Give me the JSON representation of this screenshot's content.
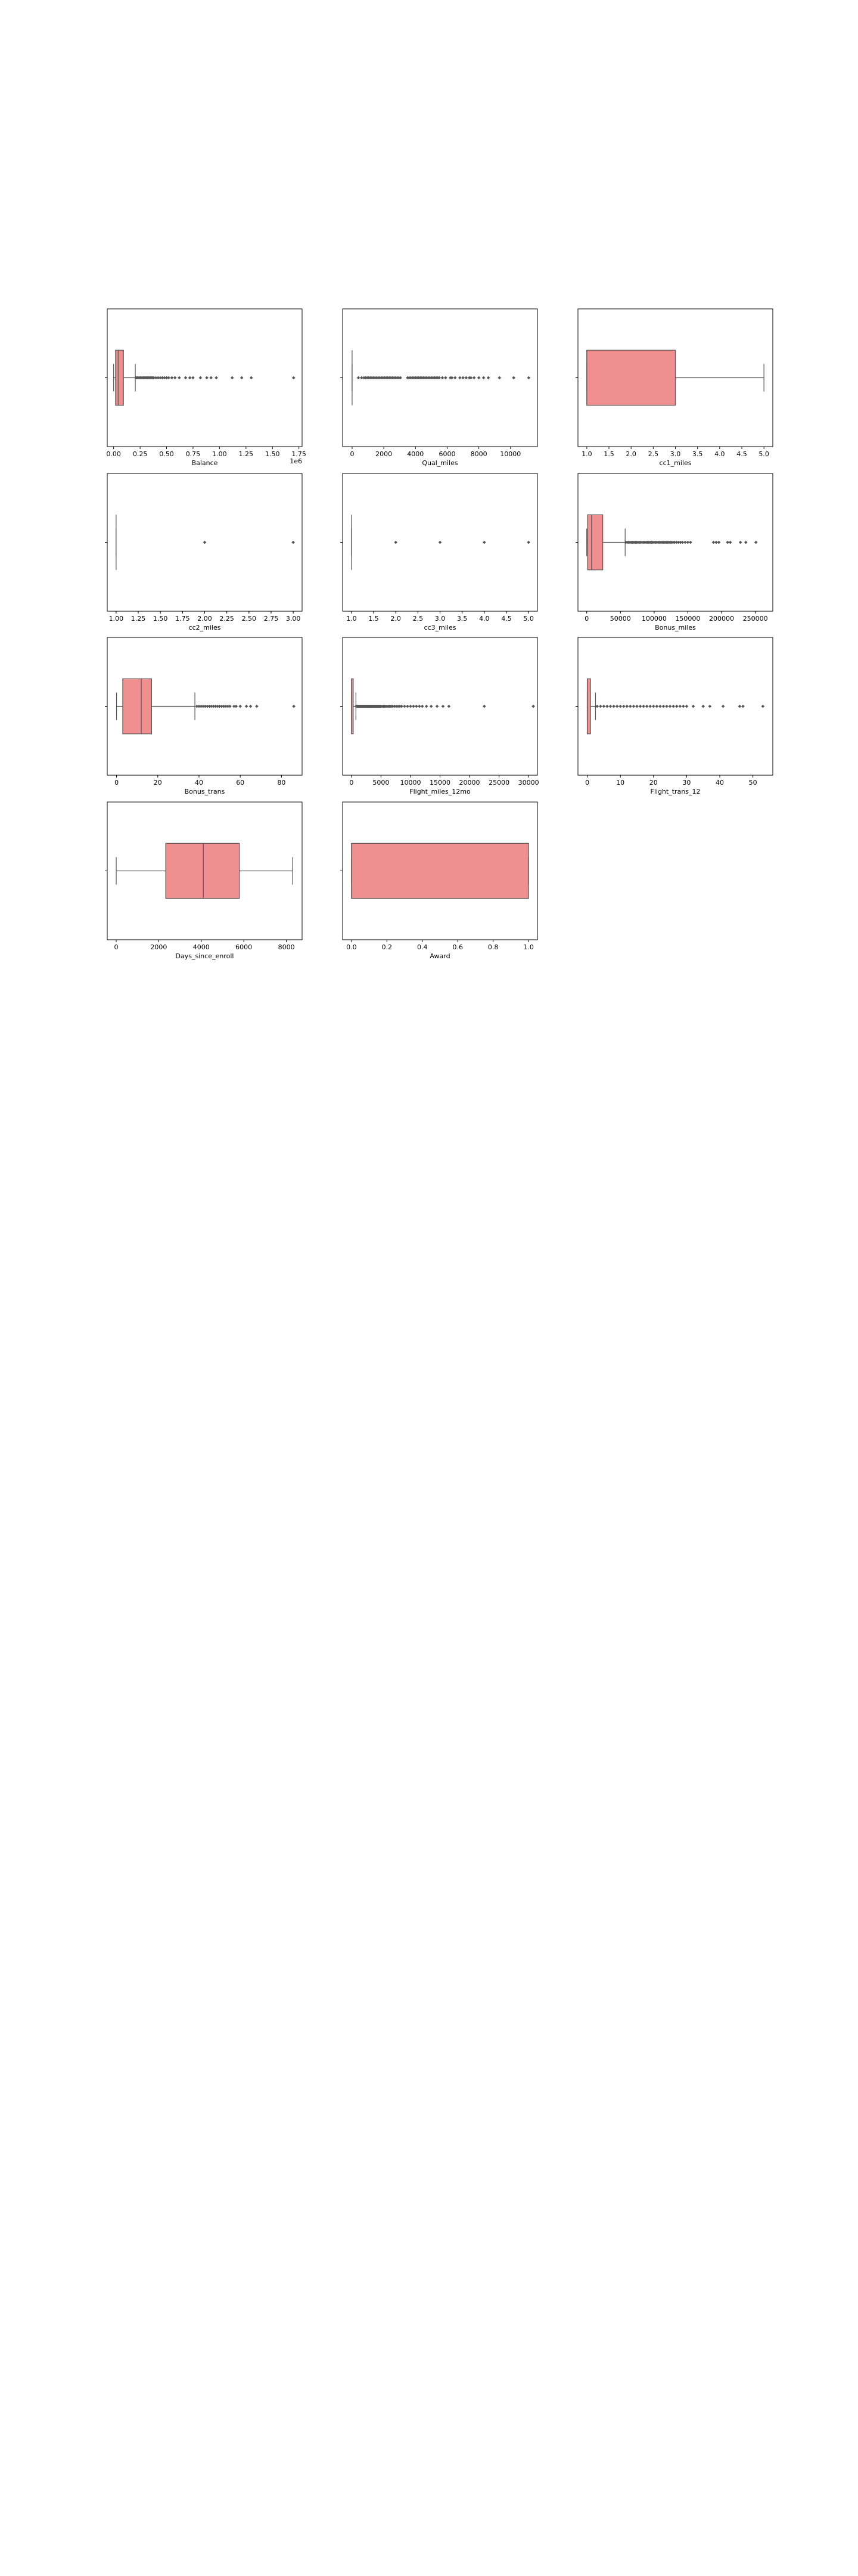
{
  "figure": {
    "colors": {
      "box_fill": "#f08f8f",
      "box_edge": "#555555",
      "axes": "#000000",
      "flier": "#555555"
    }
  },
  "chart_data": [
    {
      "type": "boxplot",
      "xlabel": "Balance",
      "offset_label": "1e6",
      "xlim": [
        -0.06,
        1.78
      ],
      "ticks": [
        0.0,
        0.25,
        0.5,
        0.75,
        1.0,
        1.25,
        1.5,
        1.75
      ],
      "tick_labels": [
        "0.00",
        "0.25",
        "0.50",
        "0.75",
        "1.00",
        "1.25",
        "1.50",
        "1.75"
      ],
      "box": {
        "whislo": 0.0,
        "q1": 0.018,
        "med": 0.043,
        "q3": 0.093,
        "whishi": 0.205
      },
      "fliers": [
        0.21,
        0.22,
        0.23,
        0.24,
        0.25,
        0.26,
        0.27,
        0.28,
        0.29,
        0.3,
        0.31,
        0.32,
        0.33,
        0.34,
        0.35,
        0.36,
        0.37,
        0.38,
        0.4,
        0.42,
        0.44,
        0.46,
        0.48,
        0.5,
        0.52,
        0.55,
        0.58,
        0.62,
        0.68,
        0.72,
        0.75,
        0.82,
        0.88,
        0.92,
        0.97,
        1.12,
        1.21,
        1.3,
        1.7
      ]
    },
    {
      "type": "boxplot",
      "xlabel": "Qual_miles",
      "xlim": [
        -600,
        11700
      ],
      "ticks": [
        0,
        2000,
        4000,
        6000,
        8000,
        10000
      ],
      "tick_labels": [
        "0",
        "2000",
        "4000",
        "6000",
        "8000",
        "10000"
      ],
      "box": {
        "whislo": 0,
        "q1": 0,
        "med": 0,
        "q3": 0,
        "whishi": 0
      },
      "fliers": [
        400,
        600,
        750,
        850,
        950,
        1050,
        1150,
        1250,
        1350,
        1450,
        1550,
        1650,
        1750,
        1850,
        1950,
        2050,
        2150,
        2250,
        2350,
        2450,
        2550,
        2650,
        2750,
        2850,
        2950,
        3050,
        3500,
        3600,
        3700,
        3800,
        3900,
        4000,
        4100,
        4200,
        4300,
        4400,
        4500,
        4600,
        4700,
        4800,
        4900,
        5000,
        5100,
        5200,
        5300,
        5400,
        5500,
        5700,
        5900,
        6200,
        6300,
        6500,
        6800,
        7000,
        7200,
        7400,
        7500,
        7700,
        8000,
        8300,
        8600,
        9300,
        10200,
        11150
      ]
    },
    {
      "type": "boxplot",
      "xlabel": "cc1_miles",
      "xlim": [
        0.8,
        5.2
      ],
      "ticks": [
        1.0,
        1.5,
        2.0,
        2.5,
        3.0,
        3.5,
        4.0,
        4.5,
        5.0
      ],
      "tick_labels": [
        "1.0",
        "1.5",
        "2.0",
        "2.5",
        "3.0",
        "3.5",
        "4.0",
        "4.5",
        "5.0"
      ],
      "box": {
        "whislo": 1.0,
        "q1": 1.0,
        "med": 1.0,
        "q3": 3.0,
        "whishi": 5.0
      },
      "fliers": []
    },
    {
      "type": "boxplot",
      "xlabel": "cc2_miles",
      "xlim": [
        0.9,
        3.1
      ],
      "ticks": [
        1.0,
        1.25,
        1.5,
        1.75,
        2.0,
        2.25,
        2.5,
        2.75,
        3.0
      ],
      "tick_labels": [
        "1.00",
        "1.25",
        "1.50",
        "1.75",
        "2.00",
        "2.25",
        "2.50",
        "2.75",
        "3.00"
      ],
      "box": {
        "whislo": 1.0,
        "q1": 1.0,
        "med": 1.0,
        "q3": 1.0,
        "whishi": 1.0
      },
      "fliers": [
        2.0,
        3.0
      ]
    },
    {
      "type": "boxplot",
      "xlabel": "cc3_miles",
      "xlim": [
        0.8,
        5.2
      ],
      "ticks": [
        1.0,
        1.5,
        2.0,
        2.5,
        3.0,
        3.5,
        4.0,
        4.5,
        5.0
      ],
      "tick_labels": [
        "1.0",
        "1.5",
        "2.0",
        "2.5",
        "3.0",
        "3.5",
        "4.0",
        "4.5",
        "5.0"
      ],
      "box": {
        "whislo": 1.0,
        "q1": 1.0,
        "med": 1.0,
        "q3": 1.0,
        "whishi": 1.0
      },
      "fliers": [
        2.0,
        3.0,
        4.0,
        5.0
      ]
    },
    {
      "type": "boxplot",
      "xlabel": "Bonus_miles",
      "xlim": [
        -13000,
        276000
      ],
      "ticks": [
        0,
        50000,
        100000,
        150000,
        200000,
        250000
      ],
      "tick_labels": [
        "0",
        "50000",
        "100000",
        "150000",
        "200000",
        "250000"
      ],
      "box": {
        "whislo": 0,
        "q1": 1250,
        "med": 7200,
        "q3": 23800,
        "whishi": 57000
      },
      "fliers": [
        58000,
        60000,
        62000,
        64000,
        66000,
        68000,
        70000,
        72000,
        74000,
        76000,
        78000,
        80000,
        82000,
        84000,
        86000,
        88000,
        90000,
        92000,
        94000,
        96000,
        98000,
        100000,
        102000,
        104000,
        106000,
        108000,
        110000,
        112000,
        114000,
        116000,
        118000,
        120000,
        122000,
        124000,
        126000,
        128000,
        130000,
        133000,
        136000,
        139000,
        142000,
        146000,
        150000,
        154000,
        188000,
        192000,
        196000,
        209000,
        213000,
        228000,
        236000,
        251000
      ]
    },
    {
      "type": "boxplot",
      "xlabel": "Bonus_trans",
      "xlim": [
        -4.5,
        90
      ],
      "ticks": [
        0,
        20,
        40,
        60,
        80
      ],
      "tick_labels": [
        "0",
        "20",
        "40",
        "60",
        "80"
      ],
      "box": {
        "whislo": 0,
        "q1": 3,
        "med": 12,
        "q3": 17,
        "whishi": 38
      },
      "fliers": [
        39,
        40,
        41,
        42,
        43,
        44,
        45,
        46,
        47,
        48,
        49,
        50,
        51,
        52,
        53,
        54,
        55,
        57,
        58,
        60,
        63,
        65,
        68,
        86
      ]
    },
    {
      "type": "boxplot",
      "xlabel": "Flight_miles_12mo",
      "xlim": [
        -1500,
        31500
      ],
      "ticks": [
        0,
        5000,
        10000,
        15000,
        20000,
        25000,
        30000
      ],
      "tick_labels": [
        "0",
        "5000",
        "10000",
        "15000",
        "20000",
        "25000",
        "30000"
      ],
      "box": {
        "whislo": 0,
        "q1": 0,
        "med": 0,
        "q3": 300,
        "whishi": 750
      },
      "fliers": [
        800,
        900,
        1000,
        1100,
        1200,
        1300,
        1400,
        1500,
        1600,
        1700,
        1800,
        1900,
        2000,
        2100,
        2200,
        2300,
        2400,
        2500,
        2600,
        2700,
        2800,
        2900,
        3000,
        3100,
        3200,
        3300,
        3400,
        3500,
        3600,
        3700,
        3800,
        3900,
        4000,
        4100,
        4200,
        4300,
        4400,
        4500,
        4600,
        4700,
        4800,
        4900,
        5000,
        5200,
        5400,
        5600,
        5800,
        6000,
        6200,
        6400,
        6600,
        6800,
        7000,
        7300,
        7600,
        7900,
        8200,
        8500,
        9000,
        9500,
        10000,
        10500,
        11000,
        11500,
        12000,
        12700,
        13500,
        14500,
        15500,
        16500,
        22500,
        30800
      ]
    },
    {
      "type": "boxplot",
      "xlabel": "Flight_trans_12",
      "xlim": [
        -2.8,
        56
      ],
      "ticks": [
        0,
        10,
        20,
        30,
        40,
        50
      ],
      "tick_labels": [
        "0",
        "10",
        "20",
        "30",
        "40",
        "50"
      ],
      "box": {
        "whislo": 0,
        "q1": 0,
        "med": 0,
        "q3": 1,
        "whishi": 2.5
      },
      "fliers": [
        3,
        4,
        5,
        6,
        7,
        8,
        9,
        10,
        11,
        12,
        13,
        14,
        15,
        16,
        17,
        18,
        19,
        20,
        21,
        22,
        23,
        24,
        25,
        26,
        27,
        28,
        29,
        30,
        32,
        35,
        37,
        41,
        46,
        47,
        53
      ]
    },
    {
      "type": "boxplot",
      "xlabel": "Days_since_enroll",
      "xlim": [
        -420,
        8740
      ],
      "ticks": [
        0,
        2000,
        4000,
        6000,
        8000
      ],
      "tick_labels": [
        "0",
        "2000",
        "4000",
        "6000",
        "8000"
      ],
      "box": {
        "whislo": 2,
        "q1": 2330,
        "med": 4096,
        "q3": 5790,
        "whishi": 8296
      },
      "fliers": []
    },
    {
      "type": "boxplot",
      "xlabel": "Award",
      "xlim": [
        -0.05,
        1.05
      ],
      "ticks": [
        0.0,
        0.2,
        0.4,
        0.6,
        0.8,
        1.0
      ],
      "tick_labels": [
        "0.0",
        "0.2",
        "0.4",
        "0.6",
        "0.8",
        "1.0"
      ],
      "box": {
        "whislo": 0,
        "q1": 0,
        "med": 0,
        "q3": 1,
        "whishi": 1
      },
      "fliers": []
    }
  ]
}
